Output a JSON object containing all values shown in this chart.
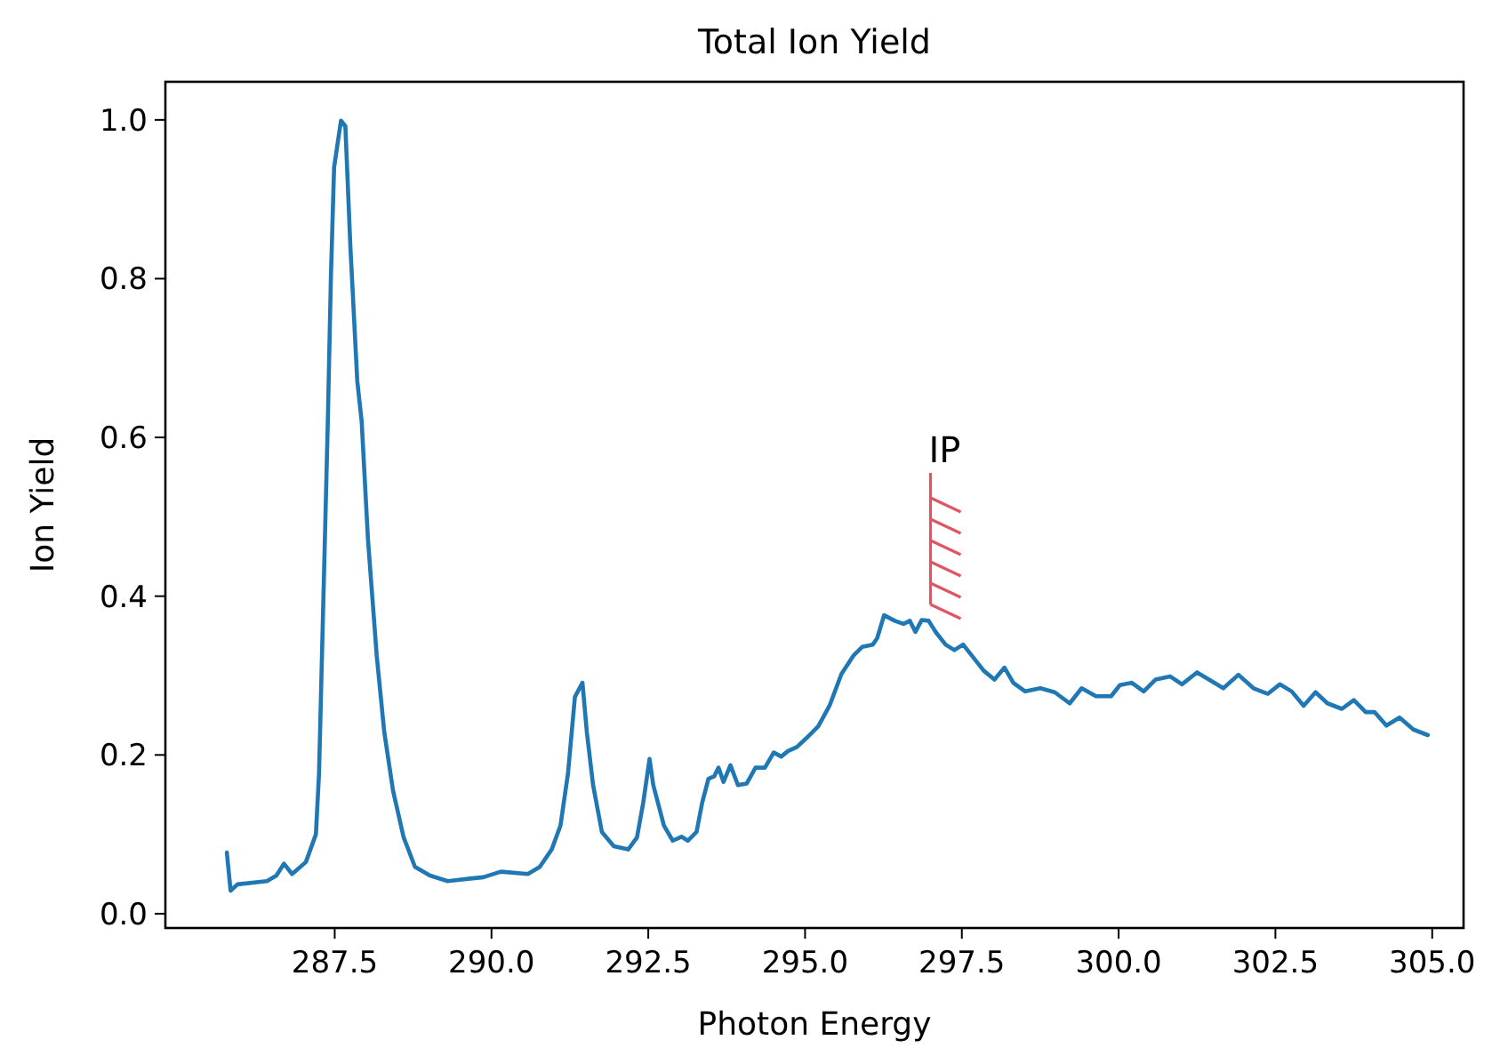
{
  "chart_data": {
    "type": "line",
    "title": "Total Ion Yield",
    "xlabel": "Photon Energy",
    "ylabel": "Ion Yield",
    "xlim": [
      284.8,
      305.5
    ],
    "ylim": [
      -0.018,
      1.048
    ],
    "xticks": [
      {
        "value": 287.5,
        "label": "287.5"
      },
      {
        "value": 290,
        "label": "290.0"
      },
      {
        "value": 292.5,
        "label": "292.5"
      },
      {
        "value": 295,
        "label": "295.0"
      },
      {
        "value": 297.5,
        "label": "297.5"
      },
      {
        "value": 300,
        "label": "300.0"
      },
      {
        "value": 302.5,
        "label": "302.5"
      },
      {
        "value": 305,
        "label": "305.0"
      }
    ],
    "yticks": [
      {
        "value": 0,
        "label": "0.0"
      },
      {
        "value": 0.2,
        "label": "0.2"
      },
      {
        "value": 0.4,
        "label": "0.4"
      },
      {
        "value": 0.6,
        "label": "0.6"
      },
      {
        "value": 0.8,
        "label": "0.8"
      },
      {
        "value": 1,
        "label": "1.0"
      }
    ],
    "grid": false,
    "marker": "none",
    "line_style": "solid",
    "ref_lines": [
      {
        "axis": "x",
        "value": 297.0,
        "label": "IP",
        "color": "#e05563"
      }
    ],
    "series": [
      {
        "color": "#1f77b4",
        "x": [
          285.78,
          285.84,
          285.95,
          286.42,
          286.57,
          286.69,
          286.82,
          287.04,
          287.2,
          287.25,
          287.32,
          287.39,
          287.44,
          287.49,
          287.6,
          287.67,
          287.75,
          287.86,
          287.93,
          288.03,
          288.17,
          288.29,
          288.43,
          288.6,
          288.78,
          289.02,
          289.3,
          289.63,
          289.87,
          290.15,
          290.58,
          290.77,
          290.96,
          291.1,
          291.22,
          291.33,
          291.45,
          291.52,
          291.62,
          291.76,
          291.95,
          292.18,
          292.32,
          292.42,
          292.52,
          292.58,
          292.75,
          292.89,
          293.03,
          293.13,
          293.27,
          293.36,
          293.46,
          293.55,
          293.62,
          293.7,
          293.81,
          293.93,
          294.07,
          294.21,
          294.36,
          294.5,
          294.62,
          294.73,
          294.87,
          295.02,
          295.21,
          295.39,
          295.58,
          295.77,
          295.91,
          296.08,
          296.15,
          296.26,
          296.43,
          296.57,
          296.67,
          296.76,
          296.86,
          296.97,
          297.09,
          297.24,
          297.38,
          297.52,
          297.66,
          297.85,
          298.02,
          298.18,
          298.32,
          298.51,
          298.75,
          298.98,
          299.22,
          299.41,
          299.64,
          299.88,
          300.02,
          300.21,
          300.4,
          300.59,
          300.82,
          301.01,
          301.25,
          301.44,
          301.67,
          301.91,
          302.15,
          302.38,
          302.57,
          302.76,
          302.95,
          303.14,
          303.33,
          303.56,
          303.75,
          303.94,
          304.08,
          304.27,
          304.48,
          304.7,
          304.93
        ],
        "values": [
          0.077,
          0.029,
          0.037,
          0.041,
          0.048,
          0.063,
          0.05,
          0.065,
          0.1,
          0.177,
          0.398,
          0.62,
          0.804,
          0.94,
          0.999,
          0.992,
          0.84,
          0.671,
          0.62,
          0.472,
          0.325,
          0.229,
          0.155,
          0.096,
          0.059,
          0.048,
          0.041,
          0.044,
          0.046,
          0.053,
          0.05,
          0.059,
          0.081,
          0.111,
          0.177,
          0.273,
          0.291,
          0.229,
          0.162,
          0.103,
          0.085,
          0.081,
          0.096,
          0.14,
          0.195,
          0.162,
          0.111,
          0.092,
          0.097,
          0.092,
          0.103,
          0.14,
          0.17,
          0.173,
          0.184,
          0.166,
          0.187,
          0.162,
          0.164,
          0.184,
          0.184,
          0.203,
          0.198,
          0.205,
          0.21,
          0.221,
          0.236,
          0.262,
          0.302,
          0.325,
          0.336,
          0.339,
          0.347,
          0.376,
          0.369,
          0.365,
          0.369,
          0.355,
          0.37,
          0.369,
          0.354,
          0.339,
          0.332,
          0.339,
          0.325,
          0.306,
          0.295,
          0.31,
          0.291,
          0.28,
          0.284,
          0.279,
          0.265,
          0.284,
          0.274,
          0.274,
          0.288,
          0.291,
          0.28,
          0.295,
          0.299,
          0.289,
          0.304,
          0.295,
          0.284,
          0.301,
          0.284,
          0.277,
          0.289,
          0.28,
          0.262,
          0.279,
          0.265,
          0.258,
          0.269,
          0.254,
          0.254,
          0.237,
          0.247,
          0.232,
          0.225
        ]
      }
    ]
  }
}
